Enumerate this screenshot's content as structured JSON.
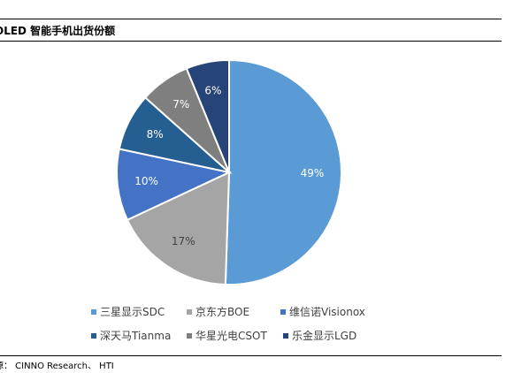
{
  "chart_data": {
    "type": "pie",
    "title": "OLED 智能手机出货份额",
    "categories": [
      "三星显示SDC",
      "京东方BOE",
      "维信诺Visionox",
      "深天马Tianma",
      "华星光电CSOT",
      "乐金显示LGD"
    ],
    "values": [
      49,
      17,
      10,
      8,
      7,
      6
    ],
    "value_labels": [
      "49%",
      "17%",
      "10%",
      "8%",
      "7%",
      "6%"
    ],
    "colors": [
      "#5b9bd5",
      "#a5a5a5",
      "#4472c4",
      "#255e91",
      "#7f7f7f",
      "#264478"
    ],
    "legend_position": "bottom"
  },
  "header": {
    "title": "OLED 智能手机出货份额"
  },
  "footer": {
    "source": "源： CINNO Research、 HTI"
  }
}
